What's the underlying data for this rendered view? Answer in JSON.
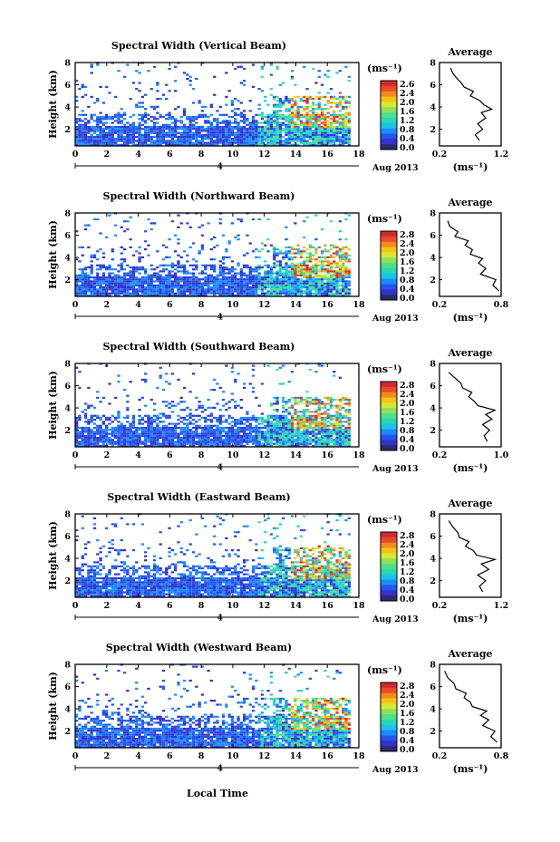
{
  "figure": {
    "xlabel": "Local Time",
    "date_label": "Aug 2013",
    "date_tick_mark": "4"
  },
  "colorbar": {
    "unit_label": "(ms⁻¹)",
    "colors": [
      "#2a2a6e",
      "#3333cc",
      "#2255ee",
      "#1a8cff",
      "#19c4e8",
      "#2ad7b0",
      "#4be08a",
      "#8fe05a",
      "#d7e832",
      "#f5c316",
      "#f58a19",
      "#e84a2a",
      "#d02a2a"
    ]
  },
  "chart_data": [
    {
      "type": "heatmap",
      "title": "Spectral Width (Vertical Beam)",
      "ylabel": "Height (km)",
      "xlim": [
        0,
        18
      ],
      "ylim": [
        0.5,
        8
      ],
      "xticks": [
        0,
        2,
        4,
        6,
        8,
        10,
        12,
        14,
        16,
        18
      ],
      "xtick_labels": [
        "0",
        "2",
        "4",
        "6",
        "8",
        "10",
        "12",
        "14",
        "16",
        "18"
      ],
      "yticks": [
        2,
        4,
        6,
        8
      ],
      "ytick_labels": [
        "2",
        "4",
        "6",
        "8"
      ],
      "colorbar_ticks": [
        "2.6",
        "2.4",
        "2.0",
        "1.6",
        "1.2",
        "0.8",
        "0.4",
        "0.0"
      ],
      "avg_title": "Average",
      "avg_xlim": [
        0.2,
        1.2
      ],
      "avg_xticks": [
        0.2,
        1.2
      ],
      "avg_xtick_labels": [
        "0.2",
        "1.2"
      ],
      "avg_xlabel": "(ms⁻¹)",
      "average_profile": [
        [
          0.85,
          1.0
        ],
        [
          0.78,
          1.5
        ],
        [
          0.9,
          2.0
        ],
        [
          0.82,
          2.5
        ],
        [
          0.95,
          3.0
        ],
        [
          0.88,
          3.5
        ],
        [
          1.05,
          3.8
        ],
        [
          0.92,
          4.2
        ],
        [
          0.85,
          4.6
        ],
        [
          0.7,
          5.0
        ],
        [
          0.75,
          5.4
        ],
        [
          0.6,
          5.8
        ],
        [
          0.55,
          6.2
        ],
        [
          0.48,
          6.6
        ],
        [
          0.42,
          7.0
        ],
        [
          0.38,
          7.5
        ]
      ]
    },
    {
      "type": "heatmap",
      "title": "Spectral Width (Northward Beam)",
      "ylabel": "Height (km)",
      "xlim": [
        0,
        18
      ],
      "ylim": [
        0.5,
        8
      ],
      "xticks": [
        0,
        2,
        4,
        6,
        8,
        10,
        12,
        14,
        16,
        18
      ],
      "xtick_labels": [
        "0",
        "2",
        "4",
        "6",
        "8",
        "10",
        "12",
        "14",
        "16",
        "18"
      ],
      "yticks": [
        2,
        4,
        6,
        8
      ],
      "ytick_labels": [
        "2",
        "4",
        "6",
        "8"
      ],
      "colorbar_ticks": [
        "2.8",
        "2.4",
        "2.0",
        "1.6",
        "1.2",
        "0.8",
        "0.4",
        "0.0"
      ],
      "avg_title": "Average",
      "avg_xlim": [
        0.2,
        0.8
      ],
      "avg_xticks": [
        0.2,
        0.8
      ],
      "avg_xtick_labels": [
        "0.2",
        "0.8"
      ],
      "avg_xlabel": "(ms⁻¹)",
      "average_profile": [
        [
          0.78,
          1.0
        ],
        [
          0.72,
          1.5
        ],
        [
          0.75,
          2.0
        ],
        [
          0.6,
          2.5
        ],
        [
          0.65,
          3.0
        ],
        [
          0.58,
          3.5
        ],
        [
          0.62,
          3.9
        ],
        [
          0.5,
          4.3
        ],
        [
          0.52,
          4.7
        ],
        [
          0.45,
          5.1
        ],
        [
          0.48,
          5.5
        ],
        [
          0.35,
          5.9
        ],
        [
          0.38,
          6.3
        ],
        [
          0.3,
          6.8
        ],
        [
          0.28,
          7.3
        ]
      ]
    },
    {
      "type": "heatmap",
      "title": "Spectral Width (Southward Beam)",
      "ylabel": "Height (km)",
      "xlim": [
        0,
        18
      ],
      "ylim": [
        0.5,
        8
      ],
      "xticks": [
        0,
        2,
        4,
        6,
        8,
        10,
        12,
        14,
        16,
        18
      ],
      "xtick_labels": [
        "0",
        "2",
        "4",
        "6",
        "8",
        "10",
        "12",
        "14",
        "16",
        "18"
      ],
      "yticks": [
        2,
        4,
        6,
        8
      ],
      "ytick_labels": [
        "2",
        "4",
        "6",
        "8"
      ],
      "colorbar_ticks": [
        "2.8",
        "2.4",
        "2.0",
        "1.6",
        "1.2",
        "0.8",
        "0.4",
        "0.0"
      ],
      "avg_title": "Average",
      "avg_xlim": [
        0.2,
        1.0
      ],
      "avg_xticks": [
        0.2,
        1.0
      ],
      "avg_xtick_labels": [
        "0.2",
        "1.0"
      ],
      "avg_xlabel": "(ms⁻¹)",
      "average_profile": [
        [
          0.82,
          1.0
        ],
        [
          0.78,
          1.5
        ],
        [
          0.85,
          2.0
        ],
        [
          0.76,
          2.5
        ],
        [
          0.88,
          3.0
        ],
        [
          0.8,
          3.4
        ],
        [
          0.92,
          3.8
        ],
        [
          0.7,
          4.2
        ],
        [
          0.65,
          4.6
        ],
        [
          0.58,
          5.0
        ],
        [
          0.62,
          5.4
        ],
        [
          0.5,
          5.8
        ],
        [
          0.48,
          6.2
        ],
        [
          0.4,
          6.7
        ],
        [
          0.32,
          7.2
        ]
      ]
    },
    {
      "type": "heatmap",
      "title": "Spectral Width (Eastward Beam)",
      "ylabel": "Height (km)",
      "xlim": [
        0,
        18
      ],
      "ylim": [
        0.5,
        8
      ],
      "xticks": [
        0,
        2,
        4,
        6,
        8,
        10,
        12,
        14,
        16,
        18
      ],
      "xtick_labels": [
        "0",
        "2",
        "4",
        "6",
        "8",
        "10",
        "12",
        "14",
        "16",
        "18"
      ],
      "yticks": [
        2,
        4,
        6,
        8
      ],
      "ytick_labels": [
        "2",
        "4",
        "6",
        "8"
      ],
      "colorbar_ticks": [
        "2.8",
        "2.4",
        "2.0",
        "1.6",
        "1.2",
        "0.8",
        "0.4",
        "0.0"
      ],
      "avg_title": "Average",
      "avg_xlim": [
        0.2,
        1.2
      ],
      "avg_xticks": [
        0.2,
        1.2
      ],
      "avg_xtick_labels": [
        "0.2",
        "1.2"
      ],
      "avg_xlabel": "(ms⁻¹)",
      "average_profile": [
        [
          0.9,
          1.0
        ],
        [
          0.85,
          1.5
        ],
        [
          0.95,
          2.0
        ],
        [
          0.82,
          2.5
        ],
        [
          1.0,
          3.0
        ],
        [
          0.88,
          3.5
        ],
        [
          1.1,
          3.9
        ],
        [
          0.8,
          4.3
        ],
        [
          0.75,
          4.7
        ],
        [
          0.62,
          5.1
        ],
        [
          0.68,
          5.5
        ],
        [
          0.52,
          5.9
        ],
        [
          0.5,
          6.3
        ],
        [
          0.42,
          6.8
        ],
        [
          0.35,
          7.4
        ]
      ]
    },
    {
      "type": "heatmap",
      "title": "Spectral Width (Westward Beam)",
      "ylabel": "Height (km)",
      "xlim": [
        0,
        18
      ],
      "ylim": [
        0.5,
        8
      ],
      "xticks": [
        0,
        2,
        4,
        6,
        8,
        10,
        12,
        14,
        16,
        18
      ],
      "xtick_labels": [
        "0",
        "2",
        "4",
        "6",
        "8",
        "10",
        "12",
        "14",
        "16",
        "18"
      ],
      "yticks": [
        2,
        4,
        6,
        8
      ],
      "ytick_labels": [
        "2",
        "4",
        "6",
        "8"
      ],
      "colorbar_ticks": [
        "2.8",
        "2.4",
        "2.0",
        "1.6",
        "1.2",
        "0.8",
        "0.4",
        "0.0"
      ],
      "avg_title": "Average",
      "avg_xlim": [
        0.2,
        0.8
      ],
      "avg_xticks": [
        0.2,
        0.8
      ],
      "avg_xtick_labels": [
        "0.2",
        "0.8"
      ],
      "avg_xlabel": "(ms⁻¹)",
      "average_profile": [
        [
          0.76,
          1.0
        ],
        [
          0.7,
          1.5
        ],
        [
          0.74,
          2.0
        ],
        [
          0.62,
          2.5
        ],
        [
          0.68,
          3.0
        ],
        [
          0.6,
          3.4
        ],
        [
          0.66,
          3.8
        ],
        [
          0.52,
          4.2
        ],
        [
          0.5,
          4.6
        ],
        [
          0.44,
          5.0
        ],
        [
          0.46,
          5.4
        ],
        [
          0.36,
          5.8
        ],
        [
          0.34,
          6.3
        ],
        [
          0.28,
          6.8
        ],
        [
          0.25,
          7.4
        ]
      ]
    }
  ]
}
